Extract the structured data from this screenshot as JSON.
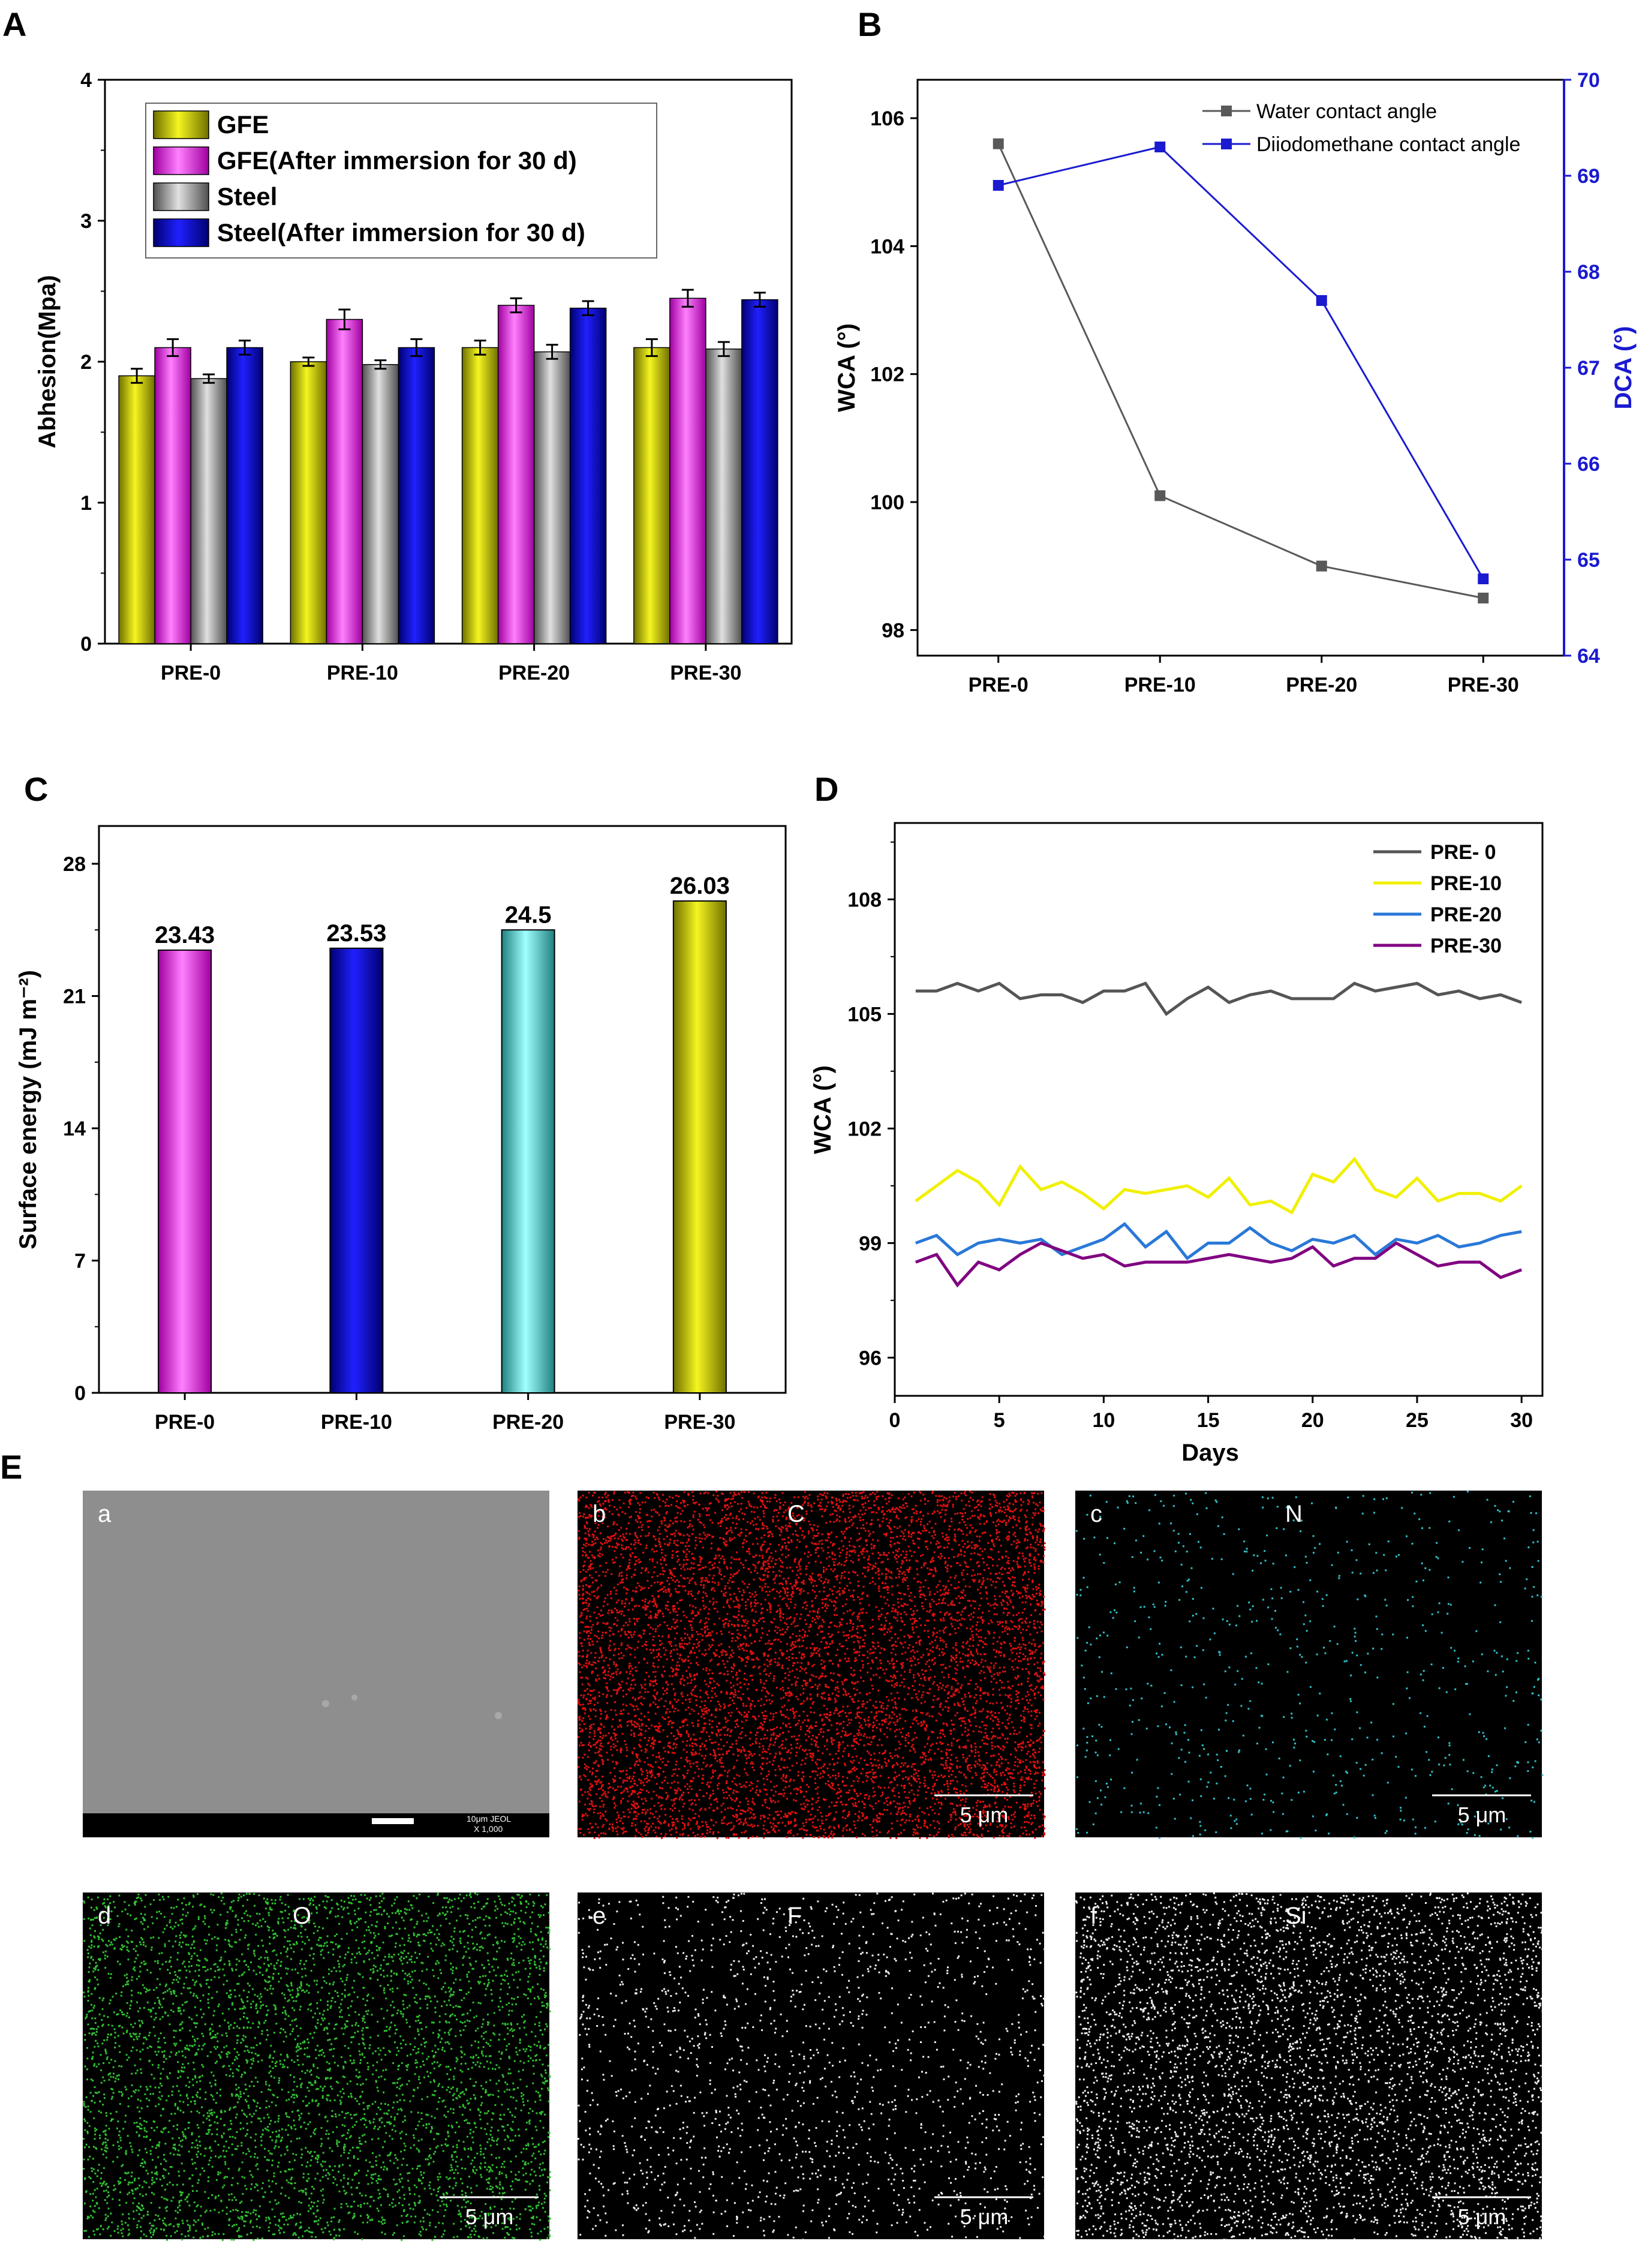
{
  "panel_letters": {
    "A": "A",
    "B": "B",
    "C": "C",
    "D": "D",
    "E": "E"
  },
  "chart_data": [
    {
      "id": "A",
      "type": "bar",
      "title": "",
      "xlabel": "",
      "ylabel": "Abhesion(Mpa)",
      "ylim": [
        0,
        4
      ],
      "yticks": [
        "0",
        "1",
        "2",
        "3",
        "4"
      ],
      "categories": [
        "PRE-0",
        "PRE-10",
        "PRE-20",
        "PRE-30"
      ],
      "series": [
        {
          "name": "GFE",
          "color": "#d8d400",
          "values": [
            1.9,
            2.0,
            2.1,
            2.1
          ],
          "errors": [
            0.05,
            0.03,
            0.05,
            0.06
          ]
        },
        {
          "name": "GFE(After immersion for 30 d)",
          "color": "#ff40ff",
          "values": [
            2.1,
            2.3,
            2.4,
            2.45
          ],
          "errors": [
            0.06,
            0.07,
            0.05,
            0.06
          ]
        },
        {
          "name": "Steel",
          "color": "#a0a0a0",
          "values": [
            1.88,
            1.98,
            2.07,
            2.09
          ],
          "errors": [
            0.03,
            0.03,
            0.05,
            0.05
          ]
        },
        {
          "name": "Steel(After immersion for 30 d)",
          "color": "#0000d8",
          "values": [
            2.1,
            2.1,
            2.38,
            2.44
          ],
          "errors": [
            0.05,
            0.06,
            0.05,
            0.05
          ]
        }
      ],
      "legend_position": "top-left"
    },
    {
      "id": "B",
      "type": "line",
      "categories": [
        "PRE-0",
        "PRE-10",
        "PRE-20",
        "PRE-30"
      ],
      "ylabel": "WCA (°)",
      "y2label": "DCA (°)",
      "ylim": [
        97.6,
        106.6
      ],
      "y2lim": [
        64,
        70
      ],
      "yticks": [
        "98",
        "100",
        "102",
        "104",
        "106"
      ],
      "y2ticks": [
        "64",
        "65",
        "66",
        "67",
        "68",
        "69",
        "70"
      ],
      "series": [
        {
          "name": "Water contact angle",
          "axis": "left",
          "color": "#595959",
          "values": [
            105.6,
            100.1,
            99.0,
            98.5
          ]
        },
        {
          "name": "Diiodomethane contact angle",
          "axis": "right",
          "color": "#1a1ad0",
          "values": [
            68.9,
            69.3,
            67.7,
            64.8
          ]
        }
      ],
      "legend_position": "top-right"
    },
    {
      "id": "C",
      "type": "bar",
      "categories": [
        "PRE-0",
        "PRE-10",
        "PRE-20",
        "PRE-30"
      ],
      "values": [
        23.43,
        23.53,
        24.5,
        26.03
      ],
      "data_labels": [
        "23.43",
        "23.53",
        "24.5",
        "26.03"
      ],
      "colors": [
        "#e070e0",
        "#0000d0",
        "#40e0e0",
        "#e8e800"
      ],
      "ylabel": "Surface energy (mJ m⁻²)",
      "ylim": [
        0,
        30
      ],
      "yticks": [
        "0",
        "7",
        "14",
        "21",
        "28"
      ]
    },
    {
      "id": "D",
      "type": "line",
      "xlabel": "Days",
      "ylabel": "WCA (°)",
      "xlim": [
        0,
        31
      ],
      "ylim": [
        95,
        110
      ],
      "xticks": [
        "0",
        "5",
        "10",
        "15",
        "20",
        "25",
        "30"
      ],
      "yticks": [
        "96",
        "99",
        "102",
        "105",
        "108"
      ],
      "x": [
        1,
        2,
        3,
        4,
        5,
        6,
        7,
        8,
        9,
        10,
        11,
        12,
        13,
        14,
        15,
        16,
        17,
        18,
        19,
        20,
        21,
        22,
        23,
        24,
        25,
        26,
        27,
        28,
        29,
        30
      ],
      "series": [
        {
          "name": "PRE- 0",
          "color": "#555555",
          "values": [
            105.6,
            105.6,
            105.8,
            105.6,
            105.8,
            105.4,
            105.5,
            105.5,
            105.3,
            105.6,
            105.6,
            105.8,
            105.0,
            105.4,
            105.7,
            105.3,
            105.5,
            105.6,
            105.4,
            105.4,
            105.4,
            105.8,
            105.6,
            105.7,
            105.8,
            105.5,
            105.6,
            105.4,
            105.5,
            105.3
          ]
        },
        {
          "name": "PRE-10",
          "color": "#f0f000",
          "values": [
            100.1,
            100.5,
            100.9,
            100.6,
            100.0,
            101.0,
            100.4,
            100.6,
            100.3,
            99.9,
            100.4,
            100.3,
            100.4,
            100.5,
            100.2,
            100.7,
            100.0,
            100.1,
            99.8,
            100.8,
            100.6,
            101.2,
            100.4,
            100.2,
            100.7,
            100.1,
            100.3,
            100.3,
            100.1,
            100.5
          ]
        },
        {
          "name": "PRE-20",
          "color": "#2a78d8",
          "values": [
            99.0,
            99.2,
            98.7,
            99.0,
            99.1,
            99.0,
            99.1,
            98.7,
            98.9,
            99.1,
            99.5,
            98.9,
            99.3,
            98.6,
            99.0,
            99.0,
            99.4,
            99.0,
            98.8,
            99.1,
            99.0,
            99.2,
            98.7,
            99.1,
            99.0,
            99.2,
            98.9,
            99.0,
            99.2,
            99.3
          ]
        },
        {
          "name": "PRE-30",
          "color": "#800080",
          "values": [
            98.5,
            98.7,
            97.9,
            98.5,
            98.3,
            98.7,
            99.0,
            98.8,
            98.6,
            98.7,
            98.4,
            98.5,
            98.5,
            98.5,
            98.6,
            98.7,
            98.6,
            98.5,
            98.6,
            98.9,
            98.4,
            98.6,
            98.6,
            99.0,
            98.7,
            98.4,
            98.5,
            98.5,
            98.1,
            98.3
          ]
        }
      ],
      "legend_position": "top-right"
    }
  ],
  "panel_E": {
    "images": [
      {
        "letter": "a",
        "element": "",
        "type": "sem",
        "scale": "",
        "sem_caption": "10μm  JEOL\nX 1,000"
      },
      {
        "letter": "b",
        "element": "C",
        "color": "#e01010",
        "scale": "5 μm"
      },
      {
        "letter": "c",
        "element": "N",
        "color": "#30c0c8",
        "scale": "5 μm"
      },
      {
        "letter": "d",
        "element": "O",
        "color": "#30c030",
        "scale": "5 μm"
      },
      {
        "letter": "e",
        "element": "F",
        "color": "#f0f0f0",
        "scale": "5 μm"
      },
      {
        "letter": "f",
        "element": "Si",
        "color": "#f0f0f0",
        "scale": "5 μm"
      }
    ]
  }
}
